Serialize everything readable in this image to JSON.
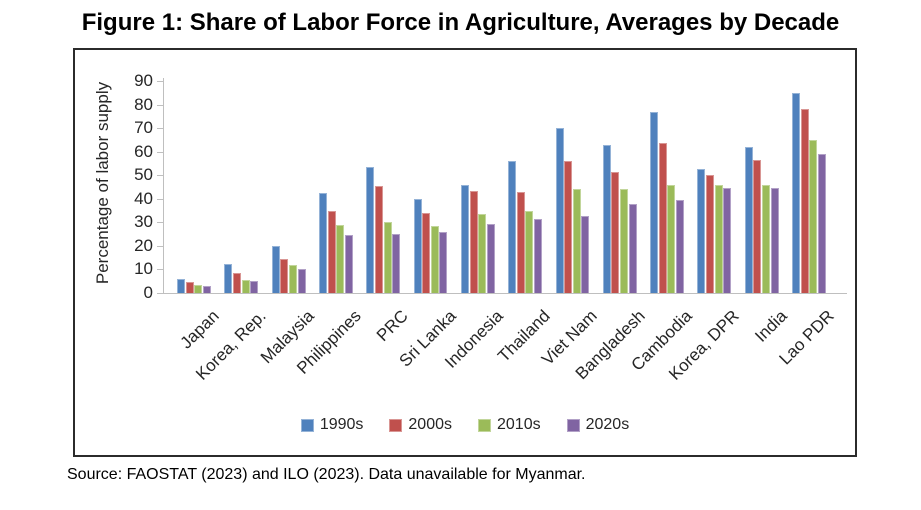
{
  "title": "Figure 1: Share of Labor Force in Agriculture, Averages by Decade",
  "source_note": "Source: FAOSTAT (2023) and ILO (2023). Data unavailable for Myanmar.",
  "chart_data": {
    "type": "bar",
    "title": "Figure 1: Share of Labor Force in Agriculture, Averages by Decade",
    "xlabel": "",
    "ylabel": "Percentage of labor supply",
    "ylim": [
      0,
      90
    ],
    "ytick_step": 10,
    "grid": false,
    "legend_position": "bottom",
    "categories": [
      "Japan",
      "Korea, Rep.",
      "Malaysia",
      "Philippines",
      "PRC",
      "Sri Lanka",
      "Indonesia",
      "Thailand",
      "Viet Nam",
      "Bangladesh",
      "Cambodia",
      "Korea, DPR",
      "India",
      "Lao PDR"
    ],
    "series": [
      {
        "name": "1990s",
        "color": "#4F81BD",
        "edge": "#95B3D7",
        "values": [
          6,
          12.5,
          20,
          42.5,
          53.5,
          40,
          46,
          56,
          70,
          63,
          77,
          52.5,
          62,
          85
        ]
      },
      {
        "name": "2000s",
        "color": "#C0504D",
        "edge": "#D99694",
        "values": [
          4.5,
          8.5,
          14.5,
          35,
          45.5,
          34,
          43.5,
          43,
          56,
          51.5,
          63.5,
          50,
          56.5,
          78
        ]
      },
      {
        "name": "2010s",
        "color": "#9BBB59",
        "edge": "#C2D69B",
        "values": [
          3.5,
          5.5,
          12,
          29,
          30,
          28.5,
          33.5,
          35,
          44,
          44,
          46,
          46,
          46,
          65
        ]
      },
      {
        "name": "2020s",
        "color": "#8064A2",
        "edge": "#B2A1C7",
        "values": [
          3,
          5,
          10,
          24.5,
          25,
          26,
          29.5,
          31.5,
          32.5,
          38,
          39.5,
          44.5,
          44.5,
          59
        ]
      }
    ],
    "axis_color": "#BFBFBF",
    "text_color": "#262626"
  }
}
